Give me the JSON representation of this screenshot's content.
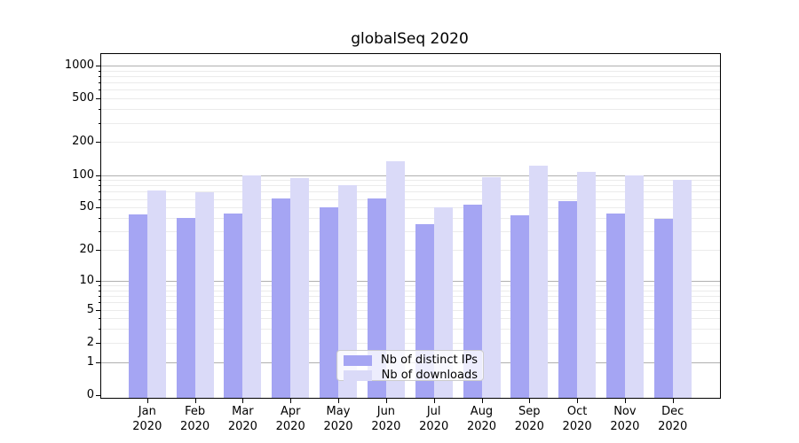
{
  "title": "globalSeq 2020",
  "chart_data": {
    "type": "bar",
    "title": "globalSeq 2020",
    "xlabel": "",
    "ylabel": "",
    "yscale": "log1p",
    "ylim": [
      0,
      1270
    ],
    "yticks": [
      0,
      1,
      2,
      5,
      10,
      20,
      50,
      100,
      200,
      500,
      1000
    ],
    "grid": "both: major gray at powers of 10, minor light gray",
    "legend_position": "lower center",
    "months": [
      "Jan",
      "Feb",
      "Mar",
      "Apr",
      "May",
      "Jun",
      "Jul",
      "Aug",
      "Sep",
      "Oct",
      "Nov",
      "Dec"
    ],
    "year": "2020",
    "series": [
      {
        "name": "Nb of distinct IPs",
        "color": "#a5a5f3",
        "values": [
          43,
          40,
          44,
          61,
          50,
          61,
          35,
          53,
          42,
          57,
          44,
          39
        ]
      },
      {
        "name": "Nb of downloads",
        "color": "#dadaf8",
        "values": [
          72,
          69,
          100,
          93,
          80,
          134,
          50,
          95,
          122,
          107,
          100,
          90
        ]
      }
    ]
  },
  "colors": {
    "background": "#ffffff",
    "bar_distinct_ips": "#a5a5f3",
    "bar_downloads": "#dadaf8",
    "grid_major": "#b0b0b0",
    "grid_minor": "#ebebeb",
    "spine": "#000000",
    "text": "#000000",
    "legend_border": "#cccccc"
  }
}
